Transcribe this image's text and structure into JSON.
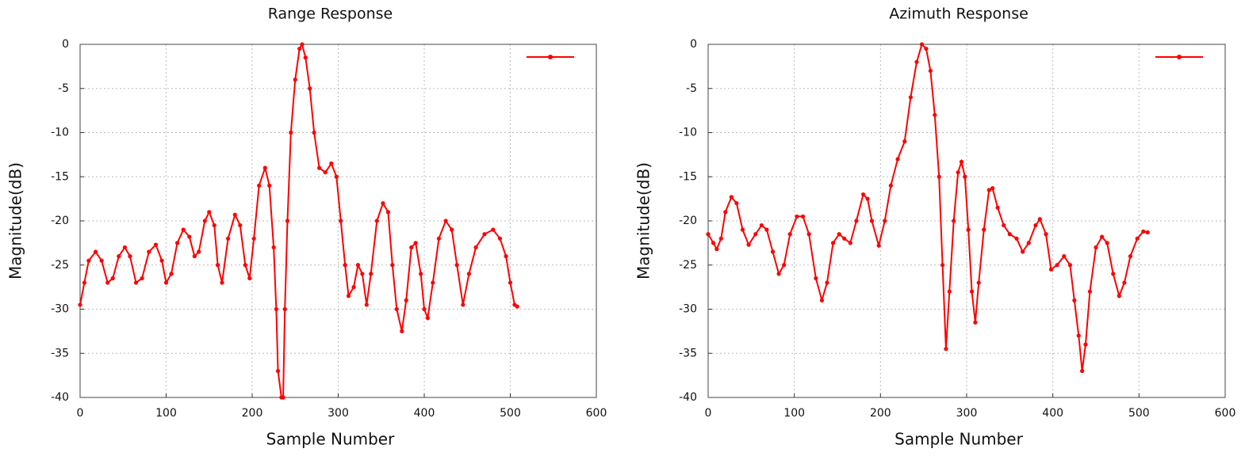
{
  "chart_data": [
    {
      "type": "line",
      "title": "Range Response",
      "xlabel": "Sample Number",
      "ylabel": "Magnitude(dB)",
      "x": [
        0,
        5,
        10,
        18,
        25,
        32,
        38,
        45,
        52,
        58,
        65,
        72,
        80,
        88,
        95,
        100,
        106,
        113,
        120,
        127,
        133,
        138,
        145,
        150,
        156,
        160,
        165,
        172,
        180,
        186,
        192,
        197,
        202,
        208,
        215,
        220,
        225,
        228,
        230,
        234,
        236,
        238,
        241,
        245,
        250,
        255,
        258,
        262,
        267,
        272,
        278,
        285,
        292,
        298,
        303,
        308,
        312,
        318,
        323,
        328,
        333,
        338,
        345,
        352,
        358,
        363,
        368,
        374,
        379,
        385,
        390,
        396,
        400,
        404,
        410,
        417,
        425,
        432,
        438,
        445,
        452,
        460,
        470,
        480,
        488,
        495,
        500,
        505,
        508
      ],
      "series": [
        {
          "color": "#ff0000",
          "values": [
            -29.5,
            -27,
            -24.5,
            -23.5,
            -24.5,
            -27,
            -26.5,
            -24,
            -23,
            -24,
            -27,
            -26.5,
            -23.5,
            -22.7,
            -24.5,
            -27,
            -26,
            -22.5,
            -21,
            -21.8,
            -24,
            -23.5,
            -20,
            -19,
            -20.5,
            -25,
            -27,
            -22,
            -19.3,
            -20.5,
            -25,
            -26.5,
            -22,
            -16,
            -14,
            -16,
            -23,
            -30,
            -37,
            -40,
            -40,
            -30,
            -20,
            -10,
            -4,
            -0.5,
            0,
            -1.5,
            -5,
            -10,
            -14,
            -14.5,
            -13.5,
            -15,
            -20,
            -25,
            -28.5,
            -27.5,
            -25,
            -26,
            -29.5,
            -26,
            -20,
            -18,
            -19,
            -25,
            -30,
            -32.5,
            -29,
            -23,
            -22.5,
            -26,
            -30,
            -31,
            -27,
            -22,
            -20,
            -21,
            -25,
            -29.5,
            -26,
            -23,
            -21.5,
            -21,
            -22,
            -24,
            -27,
            -29.5,
            -29.7
          ]
        }
      ],
      "xlim": [
        0,
        600
      ],
      "xticks": [
        0,
        100,
        200,
        300,
        400,
        500,
        600
      ],
      "ylim": [
        -40,
        0
      ],
      "yticks": [
        0,
        -5,
        -10,
        -15,
        -20,
        -25,
        -30,
        -35,
        -40
      ],
      "grid": true,
      "legend": "upper right"
    },
    {
      "type": "line",
      "title": "Azimuth Response",
      "xlabel": "Sample Number",
      "ylabel": "Magnitude(dB)",
      "x": [
        0,
        6,
        10,
        15,
        20,
        27,
        33,
        40,
        47,
        55,
        62,
        68,
        75,
        82,
        88,
        95,
        103,
        110,
        117,
        125,
        132,
        138,
        145,
        152,
        158,
        165,
        172,
        180,
        185,
        190,
        198,
        205,
        212,
        220,
        228,
        235,
        242,
        248,
        253,
        258,
        263,
        268,
        272,
        276,
        280,
        285,
        290,
        294,
        298,
        302,
        306,
        310,
        314,
        320,
        326,
        330,
        336,
        343,
        350,
        358,
        365,
        372,
        380,
        385,
        392,
        398,
        405,
        413,
        420,
        425,
        430,
        434,
        438,
        443,
        450,
        457,
        463,
        470,
        477,
        483,
        490,
        498,
        505,
        510
      ],
      "series": [
        {
          "color": "#ff0000",
          "values": [
            -21.5,
            -22.5,
            -23.2,
            -22,
            -19,
            -17.3,
            -18,
            -21,
            -22.7,
            -21.5,
            -20.5,
            -21,
            -23.5,
            -26,
            -25,
            -21.5,
            -19.5,
            -19.5,
            -21.5,
            -26.5,
            -29,
            -27,
            -22.5,
            -21.5,
            -22,
            -22.5,
            -20,
            -17,
            -17.5,
            -20,
            -22.8,
            -20,
            -16,
            -13,
            -11,
            -6,
            -2,
            0,
            -0.5,
            -3,
            -8,
            -15,
            -25,
            -34.5,
            -28,
            -20,
            -14.5,
            -13.3,
            -15,
            -21,
            -28,
            -31.5,
            -27,
            -21,
            -16.5,
            -16.3,
            -18.5,
            -20.5,
            -21.5,
            -22,
            -23.5,
            -22.5,
            -20.5,
            -19.8,
            -21.5,
            -25.5,
            -25,
            -24,
            -25,
            -29,
            -33,
            -37,
            -34,
            -28,
            -23,
            -21.8,
            -22.5,
            -26,
            -28.5,
            -27,
            -24,
            -22,
            -21.2,
            -21.3
          ]
        }
      ],
      "xlim": [
        0,
        600
      ],
      "xticks": [
        0,
        100,
        200,
        300,
        400,
        500,
        600
      ],
      "ylim": [
        -40,
        0
      ],
      "yticks": [
        0,
        -5,
        -10,
        -15,
        -20,
        -25,
        -30,
        -35,
        -40
      ],
      "grid": true,
      "legend": "upper right"
    }
  ]
}
